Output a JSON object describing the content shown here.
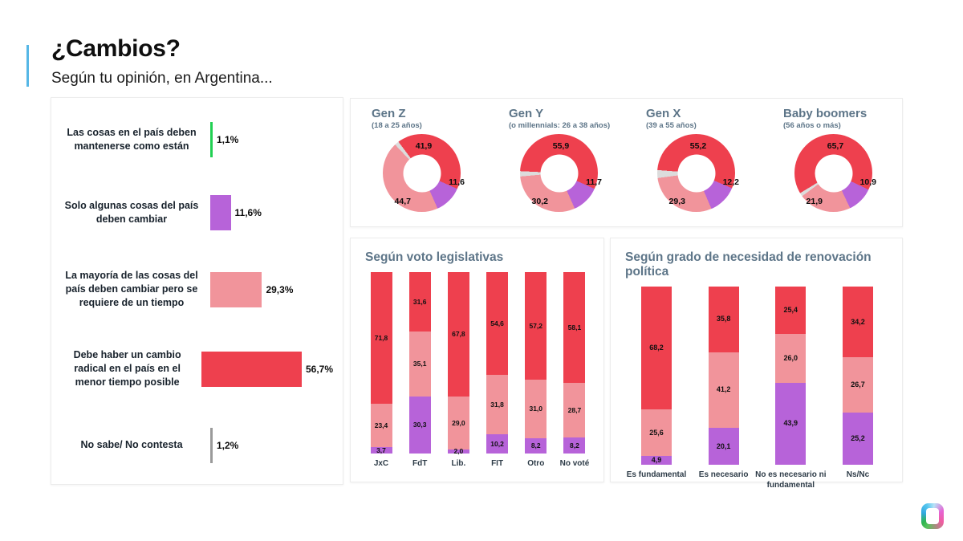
{
  "header": {
    "title": "¿Cambios?",
    "subtitle": "Según tu opinión, en Argentina..."
  },
  "colors": {
    "red": "#ee404e",
    "pink": "#f1949b",
    "purple": "#b763d9",
    "green": "#21d052",
    "gray": "#9a9a9a",
    "rest": "#dcdcdc",
    "accent_blue": "#56b7e6",
    "slate_heading": "#5d7588"
  },
  "chart_data": [
    {
      "id": "opinion_general",
      "type": "bar",
      "orientation": "horizontal",
      "categories": [
        "Las cosas en el país deben mantenerse como están",
        "Solo algunas cosas del país deben cambiar",
        "La mayoría de las cosas del país deben cambiar pero se requiere de un tiempo",
        "Debe haber un cambio radical en el país en el menor tiempo posible",
        "No sabe/ No contesta"
      ],
      "values": [
        1.1,
        11.6,
        29.3,
        56.7,
        1.2
      ],
      "value_labels": [
        "1,1%",
        "11,6%",
        "29,3%",
        "56,7%",
        "1,2%"
      ],
      "bar_colors": [
        "green",
        "purple",
        "pink",
        "red",
        "gray"
      ],
      "xlim": [
        0,
        60
      ]
    },
    {
      "id": "por_generacion",
      "type": "pie",
      "donut": true,
      "slice_colors": [
        "red",
        "purple",
        "pink"
      ],
      "slice_names": [
        "cambio radical",
        "solo algunas cosas",
        "mayoría con tiempo"
      ],
      "series": [
        {
          "name": "Gen Z",
          "subtitle": "(18 a 25 años)",
          "values": [
            41.9,
            11.6,
            44.7
          ],
          "labels": [
            "41,9",
            "11,6",
            "44,7"
          ]
        },
        {
          "name": "Gen Y",
          "subtitle": "(o millennials: 26 a 38 años)",
          "values": [
            55.9,
            11.7,
            30.2
          ],
          "labels": [
            "55,9",
            "11,7",
            "30,2"
          ]
        },
        {
          "name": "Gen X",
          "subtitle": "(39 a 55 años)",
          "values": [
            55.2,
            12.2,
            29.3
          ],
          "labels": [
            "55,2",
            "12,2",
            "29,3"
          ]
        },
        {
          "name": "Baby boomers",
          "subtitle": "(56 años o más)",
          "values": [
            65.7,
            10.9,
            21.9
          ],
          "labels": [
            "65,7",
            "10,9",
            "21,9"
          ]
        }
      ]
    },
    {
      "id": "segun_voto_legislativas",
      "type": "bar",
      "stacked": true,
      "title": "Según voto legislativas",
      "categories": [
        "JxC",
        "FdT",
        "Lib.",
        "FIT",
        "Otro",
        "No voté"
      ],
      "series": [
        {
          "name": "cambio radical",
          "color": "red",
          "values": [
            71.8,
            31.6,
            67.8,
            54.6,
            57.2,
            58.1
          ],
          "labels": [
            "71,8",
            "31,6",
            "67,8",
            "54,6",
            "57,2",
            "58,1"
          ]
        },
        {
          "name": "mayoría con tiempo",
          "color": "pink",
          "values": [
            23.4,
            35.1,
            29.0,
            31.8,
            31.0,
            28.7
          ],
          "labels": [
            "23,4",
            "35,1",
            "29,0",
            "31,8",
            "31,0",
            "28,7"
          ]
        },
        {
          "name": "solo algunas cosas",
          "color": "purple",
          "values": [
            3.7,
            30.3,
            2.0,
            10.2,
            8.2,
            8.2
          ],
          "labels": [
            "3,7",
            "30,3",
            "2,0",
            "10,2",
            "8,2",
            "8,2"
          ]
        }
      ]
    },
    {
      "id": "segun_grado_renovacion",
      "type": "bar",
      "stacked": true,
      "title": "Según grado de necesidad de renovación política",
      "categories": [
        "Es fundamental",
        "Es necesario",
        "No es necesario ni fundamental",
        "Ns/Nc"
      ],
      "series": [
        {
          "name": "cambio radical",
          "color": "red",
          "values": [
            68.2,
            35.8,
            25.4,
            34.2
          ],
          "labels": [
            "68,2",
            "35,8",
            "25,4",
            "34,2"
          ]
        },
        {
          "name": "mayoría con tiempo",
          "color": "pink",
          "values": [
            25.6,
            41.2,
            26.0,
            26.7
          ],
          "labels": [
            "25,6",
            "41,2",
            "26,0",
            "26,7"
          ]
        },
        {
          "name": "solo algunas cosas",
          "color": "purple",
          "values": [
            4.9,
            20.1,
            43.9,
            25.2
          ],
          "labels": [
            "4,9",
            "20,1",
            "43,9",
            "25,2"
          ]
        }
      ]
    }
  ],
  "logo": {
    "name": "gradient-ring-logo"
  }
}
